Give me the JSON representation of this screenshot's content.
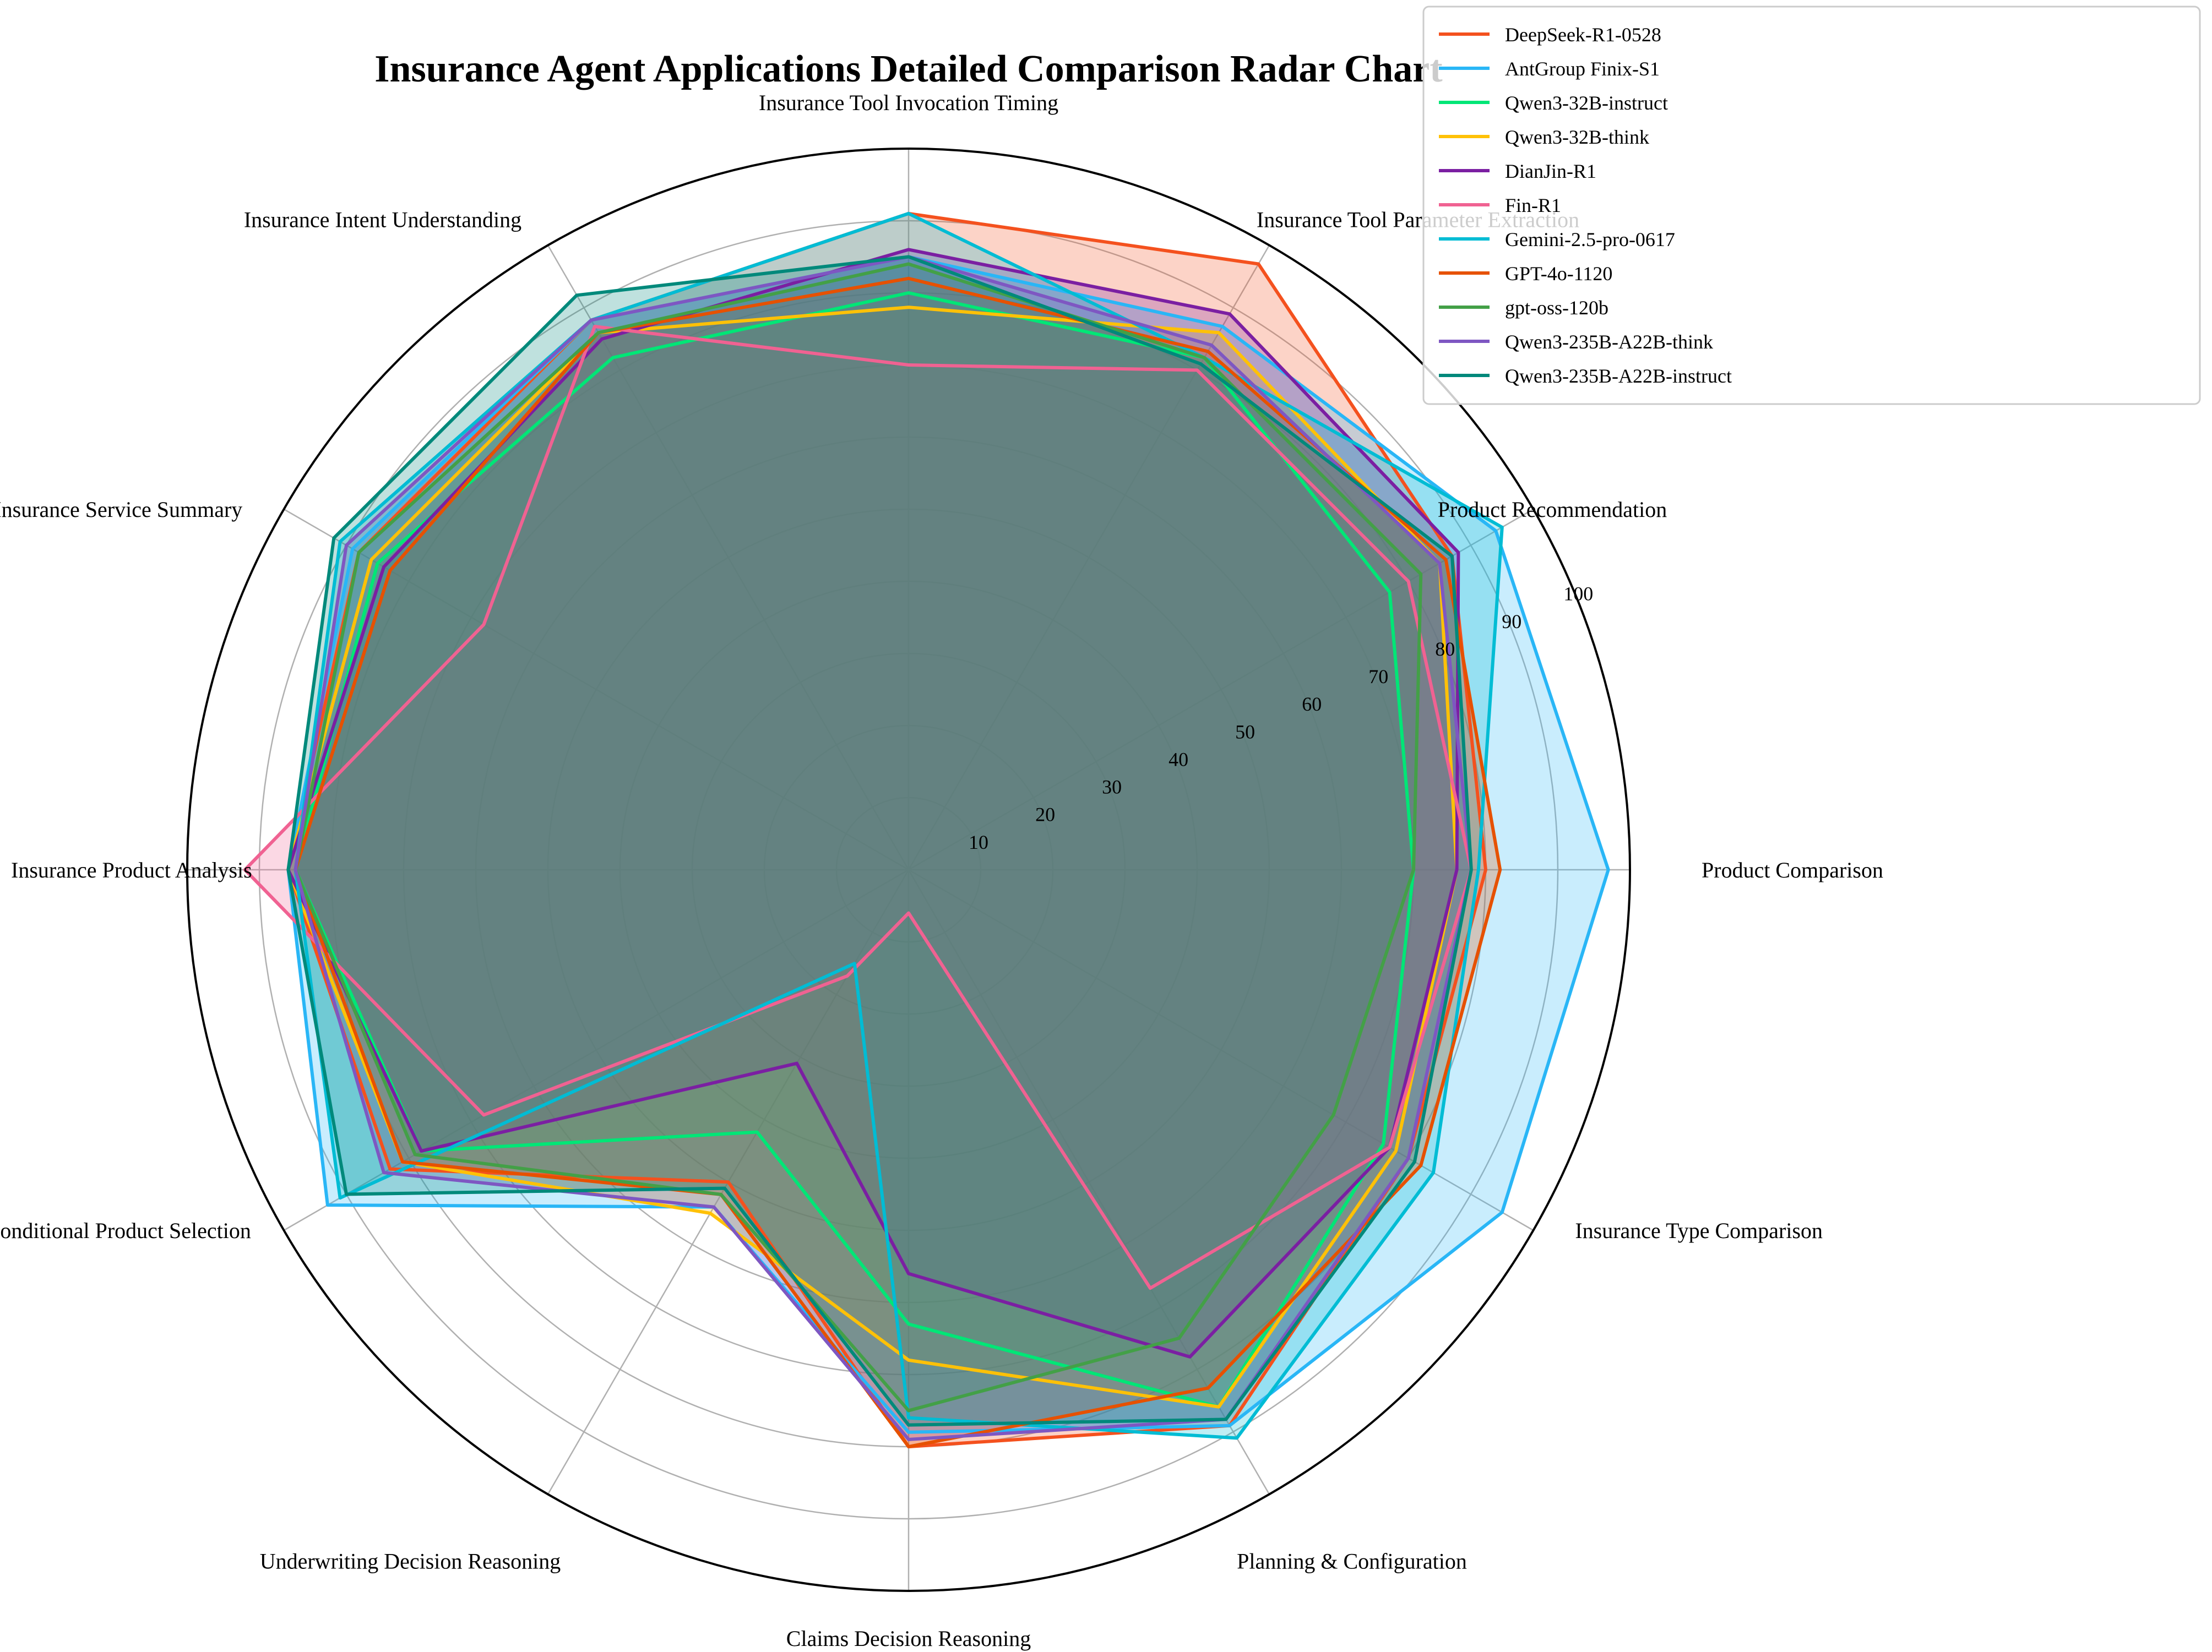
{
  "chart_data": {
    "type": "radar",
    "title": "Insurance Agent Applications Detailed Comparison Radar Chart",
    "axes": [
      "Insurance Tool Invocation Timing",
      "Insurance Tool Parameter Extraction",
      "Product Recommendation",
      "Product Comparison",
      "Insurance Type Comparison",
      "Planning & Configuration",
      "Claims Decision Reasoning",
      "Underwriting Decision Reasoning",
      "Conditional Product Selection",
      "Insurance Product Analysis",
      "Insurance Service Summary",
      "Insurance Intent Understanding"
    ],
    "radial_ticks": [
      10,
      20,
      30,
      40,
      50,
      60,
      70,
      80,
      90,
      100
    ],
    "rlim": [
      0,
      100
    ],
    "series": [
      {
        "name": "DeepSeek-R1-0528",
        "color": "#F4511E",
        "values": [
          91,
          97,
          87,
          80,
          80,
          89,
          80,
          50,
          83,
          86,
          88,
          88
        ]
      },
      {
        "name": "AntGroup Finix-S1",
        "color": "#29B6F6",
        "values": [
          85,
          87,
          94,
          97,
          95,
          89,
          78,
          54,
          93,
          86,
          89,
          88
        ]
      },
      {
        "name": "Qwen3-32B-instruct",
        "color": "#00E676",
        "values": [
          80,
          82,
          77,
          70,
          76,
          86,
          63,
          42,
          78,
          85,
          85,
          82
        ]
      },
      {
        "name": "Qwen3-32B-think",
        "color": "#FFC107",
        "values": [
          78,
          86,
          85,
          76,
          78,
          86,
          68,
          55,
          81,
          86,
          86,
          86
        ]
      },
      {
        "name": "DianJin-R1",
        "color": "#7B1FA2",
        "values": [
          86,
          89,
          88,
          76,
          77,
          78,
          56,
          31,
          78,
          86,
          84,
          85
        ]
      },
      {
        "name": "Fin-R1",
        "color": "#F06292",
        "values": [
          70,
          80,
          80,
          78,
          77,
          67,
          6,
          17,
          68,
          92,
          68,
          87
        ]
      },
      {
        "name": "Gemini-2.5-pro-0617",
        "color": "#00BCD4",
        "values": [
          91,
          82,
          95,
          79,
          84,
          91,
          76,
          15,
          91,
          85,
          91,
          88
        ]
      },
      {
        "name": "GPT-4o-1120",
        "color": "#E65100",
        "values": [
          82,
          83,
          86,
          82,
          82,
          83,
          80,
          52,
          81,
          85,
          83,
          86
        ]
      },
      {
        "name": "gpt-oss-120b",
        "color": "#43A047",
        "values": [
          84,
          82,
          82,
          70,
          68,
          75,
          75,
          52,
          79,
          85,
          88,
          86
        ]
      },
      {
        "name": "Qwen3-235B-A22B-think",
        "color": "#7E57C2",
        "values": [
          85,
          84,
          85,
          78,
          80,
          88,
          79,
          54,
          84,
          85,
          90,
          88
        ]
      },
      {
        "name": "Qwen3-235B-A22B-instruct",
        "color": "#00897B",
        "values": [
          85,
          81,
          87,
          78,
          81,
          88,
          77,
          51,
          90,
          86,
          92,
          92
        ]
      }
    ],
    "grid": true,
    "legend_position": "top-right, outside plot"
  }
}
